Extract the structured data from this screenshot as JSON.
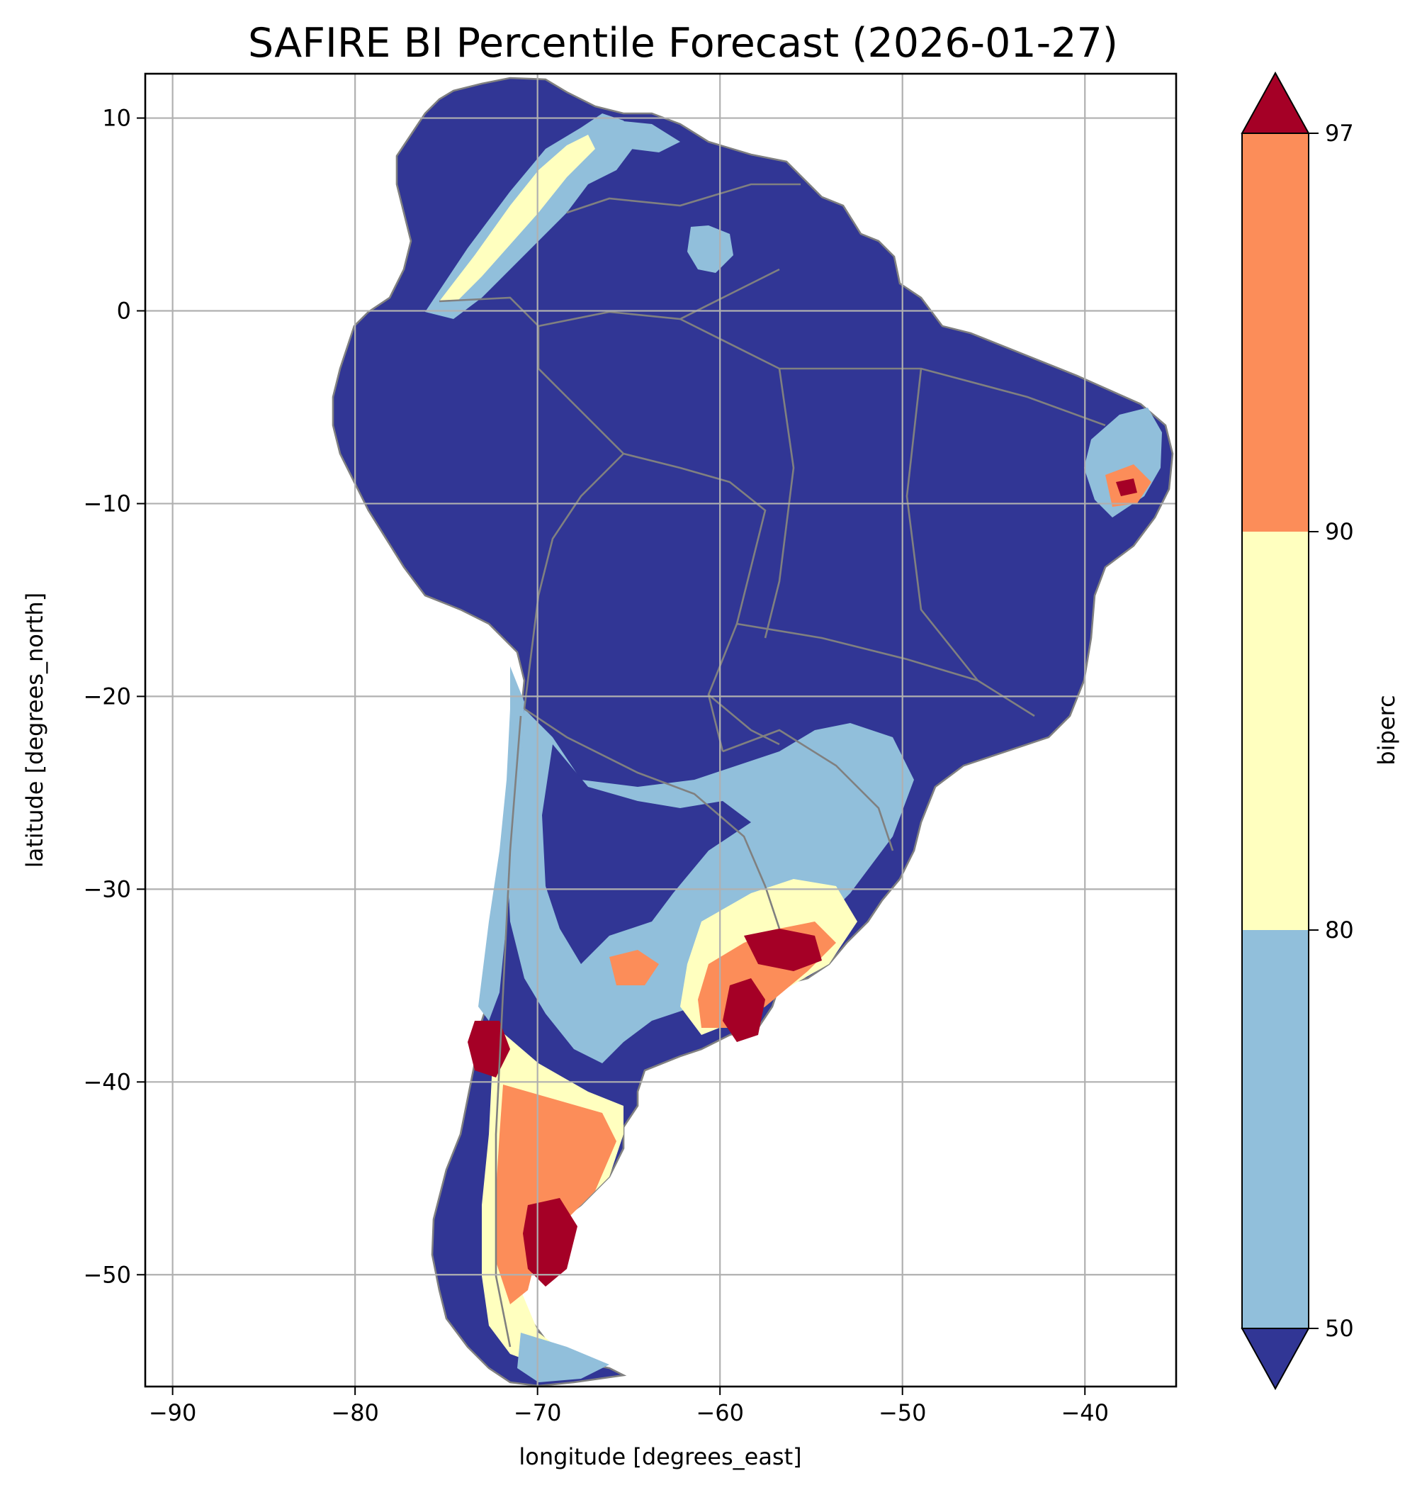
{
  "title": "SAFIRE BI Percentile Forecast (2026-01-27)",
  "map": {
    "xlabel": "longitude [degrees_east]",
    "ylabel": "latitude [degrees_north]",
    "xlim": [
      -91.5,
      -35
    ],
    "ylim": [
      -55.8,
      12.3
    ],
    "xticks": [
      -90,
      -80,
      -70,
      -60,
      -50,
      -40
    ],
    "yticks": [
      10,
      0,
      -10,
      -20,
      -30,
      -40,
      -50
    ],
    "xtick_labels": [
      "−90",
      "−80",
      "−70",
      "−60",
      "−50",
      "−40"
    ],
    "ytick_labels": [
      "10",
      "0",
      "−10",
      "−20",
      "−30",
      "−40",
      "−50"
    ],
    "grid": true,
    "region": "South America",
    "colors": {
      "below_50": "#313695",
      "band_50_80": "#91bfdb",
      "band_80_90": "#ffffbf",
      "band_90_97": "#fc8d59",
      "above_97": "#a50026",
      "borders": "#808080",
      "ocean": "#ffffff"
    }
  },
  "colorbar": {
    "label": "biperc",
    "ticks": [
      "50",
      "80",
      "90",
      "97"
    ],
    "extend": "both"
  }
}
